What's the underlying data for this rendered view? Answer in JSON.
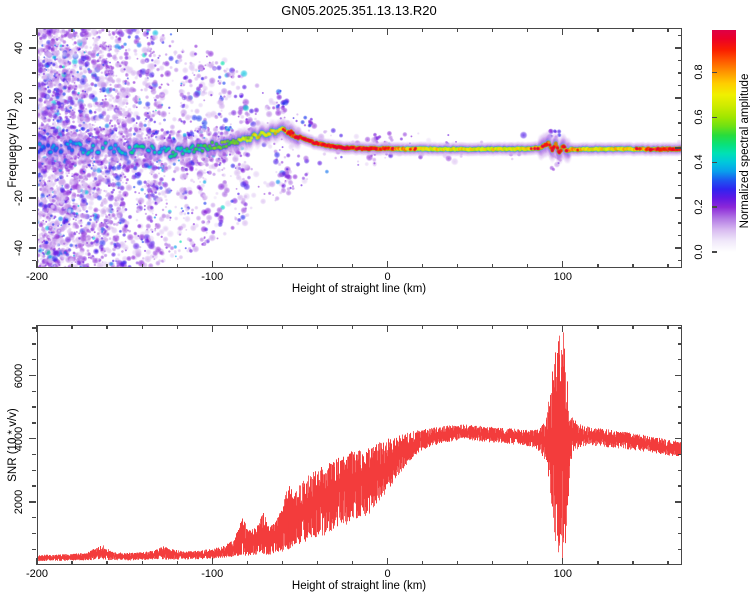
{
  "chart_data": [
    {
      "type": "heatmap",
      "title": "GN05.2025.351.13.13.R20",
      "xlabel": "Height of straight line (km)",
      "ylabel": "Frequency (Hz)",
      "xlim": [
        -200,
        168
      ],
      "ylim": [
        -48,
        48
      ],
      "xticks_major": [
        -200,
        -100,
        0,
        100
      ],
      "x_minor_step": 20,
      "yticks_major": [
        -40,
        -20,
        0,
        20,
        40
      ],
      "y_minor_step": 5,
      "colorbar": {
        "label": "Normalized spectral amplitude",
        "ticks": [
          0.0,
          0.2,
          0.4,
          0.6,
          0.8
        ],
        "bottom_offset_frac": 0.086,
        "span_frac": 0.925
      },
      "colormap_format": "position_0_to_1, hex",
      "colormap": [
        [
          0.0,
          "#ffffff"
        ],
        [
          0.05,
          "#f0e8fa"
        ],
        [
          0.1,
          "#d8baf0"
        ],
        [
          0.15,
          "#b278e4"
        ],
        [
          0.2,
          "#8c28d8"
        ],
        [
          0.24,
          "#6018e4"
        ],
        [
          0.28,
          "#3024f0"
        ],
        [
          0.32,
          "#1c58f0"
        ],
        [
          0.36,
          "#08a0ec"
        ],
        [
          0.4,
          "#00c8dc"
        ],
        [
          0.44,
          "#00e1b4"
        ],
        [
          0.48,
          "#0ae178"
        ],
        [
          0.52,
          "#28dc3c"
        ],
        [
          0.56,
          "#6ee114"
        ],
        [
          0.6,
          "#a0e600"
        ],
        [
          0.65,
          "#cdeb00"
        ],
        [
          0.7,
          "#f0f000"
        ],
        [
          0.75,
          "#ffcd00"
        ],
        [
          0.8,
          "#ff9600"
        ],
        [
          0.85,
          "#ff5a00"
        ],
        [
          0.9,
          "#fa1e00"
        ],
        [
          0.95,
          "#eb0028"
        ],
        [
          1.0,
          "#de0046"
        ]
      ],
      "band_points_format": "km, freq_hz, normalized_amplitude",
      "band_points": [
        [
          -200,
          0.3,
          0.33
        ],
        [
          -190,
          -0.6,
          0.36
        ],
        [
          -180,
          0.7,
          0.35
        ],
        [
          -170,
          -0.9,
          0.4
        ],
        [
          -160,
          0.4,
          0.42
        ],
        [
          -150,
          -0.7,
          0.4
        ],
        [
          -140,
          0.5,
          0.45
        ],
        [
          -131,
          -1.3,
          0.43
        ],
        [
          -122,
          -1.6,
          0.45
        ],
        [
          -113,
          -0.6,
          0.48
        ],
        [
          -105,
          0.3,
          0.5
        ],
        [
          -97,
          1.0,
          0.53
        ],
        [
          -90,
          1.8,
          0.57
        ],
        [
          -83,
          3.0,
          0.62
        ],
        [
          -77,
          4.3,
          0.68
        ],
        [
          -71,
          5.6,
          0.72
        ],
        [
          -65,
          6.6,
          0.75
        ],
        [
          -60,
          7.0,
          0.78
        ],
        [
          -56,
          6.2,
          0.84
        ],
        [
          -52,
          5.0,
          0.9
        ],
        [
          -48,
          3.8,
          0.94
        ],
        [
          -44,
          2.6,
          0.9
        ],
        [
          -40,
          1.8,
          0.95
        ],
        [
          -36,
          1.2,
          0.9
        ],
        [
          -32,
          0.7,
          0.94
        ],
        [
          -28,
          0.3,
          0.9
        ],
        [
          -24,
          0.1,
          0.93
        ],
        [
          -20,
          -0.1,
          0.9
        ],
        [
          -16,
          -0.2,
          0.94
        ],
        [
          -12,
          -0.3,
          0.9
        ],
        [
          -8,
          -0.3,
          0.93
        ],
        [
          -4,
          -0.3,
          0.88
        ],
        [
          0,
          -0.3,
          0.85
        ],
        [
          4,
          -0.3,
          0.82
        ],
        [
          8,
          -0.35,
          0.78
        ],
        [
          14,
          -0.4,
          0.74
        ],
        [
          20,
          -0.4,
          0.7
        ],
        [
          28,
          -0.4,
          0.72
        ],
        [
          36,
          -0.4,
          0.69
        ],
        [
          44,
          -0.4,
          0.72
        ],
        [
          52,
          -0.4,
          0.68
        ],
        [
          60,
          -0.4,
          0.71
        ],
        [
          68,
          -0.4,
          0.68
        ],
        [
          76,
          -0.4,
          0.7
        ],
        [
          82,
          -0.3,
          0.73
        ],
        [
          87,
          0.2,
          0.8
        ],
        [
          90,
          1.2,
          0.86
        ],
        [
          92,
          2.0,
          0.9
        ],
        [
          94,
          -0.8,
          0.94
        ],
        [
          96,
          1.6,
          0.95
        ],
        [
          98,
          -2.2,
          0.92
        ],
        [
          100,
          0.8,
          0.88
        ],
        [
          102,
          -0.8,
          0.84
        ],
        [
          105,
          -0.5,
          0.78
        ],
        [
          112,
          -0.45,
          0.72
        ],
        [
          120,
          -0.45,
          0.7
        ],
        [
          128,
          -0.45,
          0.72
        ],
        [
          136,
          -0.45,
          0.74
        ],
        [
          144,
          -0.45,
          0.78
        ],
        [
          150,
          -0.45,
          0.85
        ],
        [
          156,
          -0.45,
          0.9
        ],
        [
          161,
          -0.45,
          0.94
        ],
        [
          165,
          -0.45,
          0.9
        ],
        [
          168,
          -0.45,
          0.88
        ]
      ],
      "noise_cloud": {
        "density_scale_km": 52,
        "extent_profile": [
          [
            -200,
            48
          ],
          [
            -130,
            48
          ],
          [
            -100,
            38
          ],
          [
            -80,
            30
          ],
          [
            -60,
            20
          ],
          [
            -40,
            12
          ],
          [
            -20,
            8
          ],
          [
            0,
            6
          ],
          [
            168,
            5
          ]
        ]
      },
      "noise_clusters": [
        {
          "km": -60,
          "f_min": 15,
          "f_max": 23,
          "count": 16,
          "amp": 0.24
        },
        {
          "km": -57,
          "f_min": -18,
          "f_max": -10,
          "count": 10,
          "amp": 0.18
        },
        {
          "km": -45,
          "f_min": 8,
          "f_max": 13,
          "count": 10,
          "amp": 0.26
        },
        {
          "km": -78,
          "f_min": 6,
          "f_max": 16,
          "count": 12,
          "amp": 0.2
        },
        {
          "km": 95,
          "f_min": 2.5,
          "f_max": 8,
          "count": 12,
          "amp": 0.2
        },
        {
          "km": 95,
          "f_min": -9,
          "f_max": -3,
          "count": 10,
          "amp": 0.18
        },
        {
          "km": -8,
          "f_min": 2,
          "f_max": 6,
          "count": 8,
          "amp": 0.16
        }
      ]
    },
    {
      "type": "line",
      "xlabel": "Height of straight line (km)",
      "ylabel": "SNR (10 * v/v)",
      "xlim": [
        -200,
        168
      ],
      "ylim": [
        0,
        7600
      ],
      "xticks_major": [
        -200,
        -100,
        0,
        100
      ],
      "x_minor_step": 20,
      "yticks_major": [
        2000,
        4000,
        6000
      ],
      "y_minor_step": 500,
      "color": "#f23c3c",
      "envelope_format": "km, snr_min, snr_max",
      "envelope_points": [
        [
          -200,
          120,
          320
        ],
        [
          -190,
          130,
          330
        ],
        [
          -180,
          140,
          360
        ],
        [
          -172,
          140,
          400
        ],
        [
          -166,
          160,
          560
        ],
        [
          -162,
          170,
          650
        ],
        [
          -158,
          150,
          430
        ],
        [
          -150,
          140,
          380
        ],
        [
          -142,
          150,
          400
        ],
        [
          -135,
          160,
          450
        ],
        [
          -128,
          170,
          600
        ],
        [
          -123,
          160,
          500
        ],
        [
          -116,
          170,
          440
        ],
        [
          -108,
          180,
          460
        ],
        [
          -100,
          200,
          520
        ],
        [
          -94,
          220,
          600
        ],
        [
          -88,
          260,
          800
        ],
        [
          -83,
          290,
          1500
        ],
        [
          -79,
          300,
          1100
        ],
        [
          -75,
          320,
          1200
        ],
        [
          -71,
          340,
          1700
        ],
        [
          -68,
          320,
          1200
        ],
        [
          -64,
          360,
          1400
        ],
        [
          -60,
          420,
          1900
        ],
        [
          -57,
          480,
          2600
        ],
        [
          -54,
          560,
          2300
        ],
        [
          -51,
          650,
          2500
        ],
        [
          -48,
          750,
          2700
        ],
        [
          -45,
          700,
          2900
        ],
        [
          -42,
          850,
          3000
        ],
        [
          -39,
          950,
          3100
        ],
        [
          -36,
          900,
          3200
        ],
        [
          -33,
          1050,
          3300
        ],
        [
          -30,
          1150,
          3400
        ],
        [
          -27,
          1350,
          3500
        ],
        [
          -24,
          1250,
          3500
        ],
        [
          -21,
          1450,
          3600
        ],
        [
          -18,
          1350,
          3600
        ],
        [
          -15,
          1550,
          3650
        ],
        [
          -12,
          1500,
          3700
        ],
        [
          -9,
          1750,
          3800
        ],
        [
          -6,
          1950,
          3850
        ],
        [
          -3,
          2150,
          3950
        ],
        [
          0,
          2350,
          4000
        ],
        [
          3,
          2550,
          4050
        ],
        [
          6,
          2850,
          4100
        ],
        [
          9,
          3050,
          4150
        ],
        [
          12,
          3250,
          4200
        ],
        [
          15,
          3450,
          4250
        ],
        [
          20,
          3650,
          4300
        ],
        [
          25,
          3750,
          4350
        ],
        [
          30,
          3850,
          4380
        ],
        [
          35,
          3900,
          4420
        ],
        [
          40,
          3950,
          4450
        ],
        [
          45,
          3950,
          4450
        ],
        [
          50,
          3920,
          4420
        ],
        [
          55,
          3900,
          4400
        ],
        [
          60,
          3870,
          4370
        ],
        [
          65,
          3850,
          4350
        ],
        [
          70,
          3820,
          4330
        ],
        [
          75,
          3800,
          4300
        ],
        [
          80,
          3760,
          4280
        ],
        [
          84,
          3700,
          4280
        ],
        [
          87,
          3550,
          4350
        ],
        [
          90,
          3250,
          4650
        ],
        [
          92,
          2650,
          5400
        ],
        [
          94,
          1500,
          6350
        ],
        [
          96,
          500,
          7000
        ],
        [
          98,
          180,
          7380
        ],
        [
          100,
          120,
          7430
        ],
        [
          101,
          350,
          7200
        ],
        [
          102,
          900,
          6400
        ],
        [
          103,
          2100,
          5300
        ],
        [
          104,
          3100,
          4900
        ],
        [
          106,
          3550,
          4650
        ],
        [
          110,
          3700,
          4450
        ],
        [
          115,
          3780,
          4380
        ],
        [
          120,
          3760,
          4330
        ],
        [
          130,
          3700,
          4270
        ],
        [
          140,
          3640,
          4180
        ],
        [
          150,
          3560,
          4080
        ],
        [
          160,
          3460,
          3980
        ],
        [
          168,
          3420,
          3930
        ]
      ]
    }
  ]
}
